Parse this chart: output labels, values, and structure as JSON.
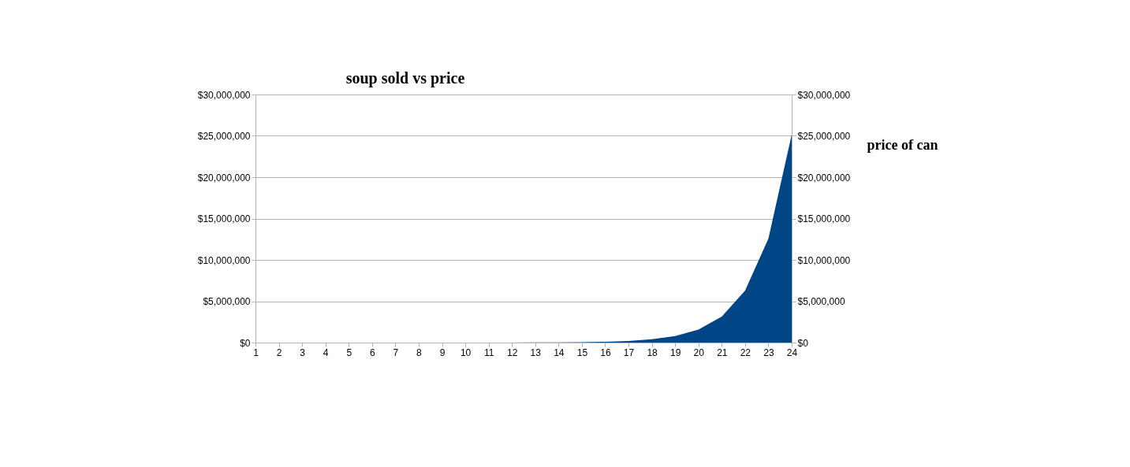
{
  "chart_data": {
    "type": "area",
    "title": "soup sold vs price",
    "y2label": "price of can",
    "x": [
      1,
      2,
      3,
      4,
      5,
      6,
      7,
      8,
      9,
      10,
      11,
      12,
      13,
      14,
      15,
      16,
      17,
      18,
      19,
      20,
      21,
      22,
      23,
      24
    ],
    "series": [
      {
        "color": "#004586",
        "values": [
          3,
          6,
          12,
          24,
          48,
          96,
          192,
          384,
          768,
          1536,
          3072,
          6144,
          12288,
          24576,
          49152,
          98304,
          196608,
          393216,
          786432,
          1572864,
          3145728,
          6291456,
          12582912,
          25165824
        ]
      }
    ],
    "xlim": [
      1,
      24
    ],
    "xticks": [
      1,
      2,
      3,
      4,
      5,
      6,
      7,
      8,
      9,
      10,
      11,
      12,
      13,
      14,
      15,
      16,
      17,
      18,
      19,
      20,
      21,
      22,
      23,
      24
    ],
    "ylim": [
      0,
      30000000
    ],
    "yticks": [
      {
        "value": 0,
        "label": "$0"
      },
      {
        "value": 5000000,
        "label": "$5,000,000"
      },
      {
        "value": 10000000,
        "label": "$10,000,000"
      },
      {
        "value": 15000000,
        "label": "$15,000,000"
      },
      {
        "value": 20000000,
        "label": "$20,000,000"
      },
      {
        "value": 25000000,
        "label": "$25,000,000"
      },
      {
        "value": 30000000,
        "label": "$30,000,000"
      }
    ],
    "y2lim": [
      0,
      30000000
    ],
    "y2ticks": [
      {
        "value": 0,
        "label": "$0"
      },
      {
        "value": 5000000,
        "label": "$5,000,000"
      },
      {
        "value": 10000000,
        "label": "$10,000,000"
      },
      {
        "value": 15000000,
        "label": "$15,000,000"
      },
      {
        "value": 20000000,
        "label": "$20,000,000"
      },
      {
        "value": 25000000,
        "label": "$25,000,000"
      },
      {
        "value": 30000000,
        "label": "$30,000,000"
      }
    ],
    "grid": "y"
  }
}
